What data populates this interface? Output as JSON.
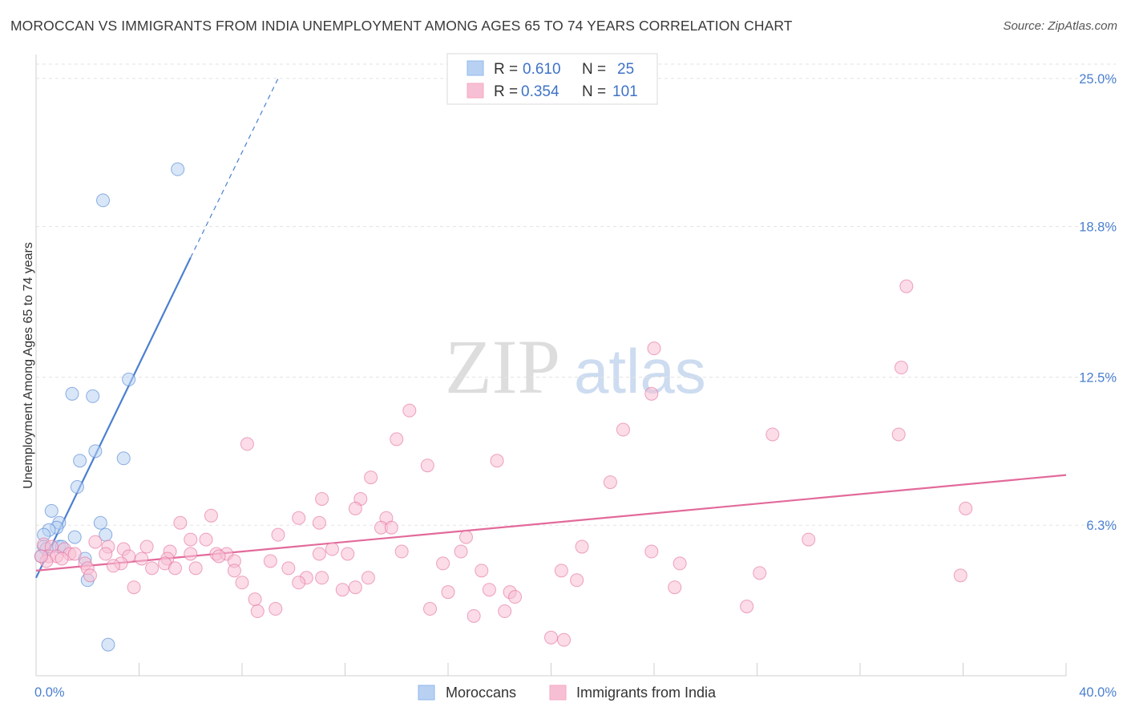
{
  "title": "MOROCCAN VS IMMIGRANTS FROM INDIA UNEMPLOYMENT AMONG AGES 65 TO 74 YEARS CORRELATION CHART",
  "source": "Source: ZipAtlas.com",
  "watermark": {
    "zip": "ZIP",
    "atlas": "atlas"
  },
  "legend": {
    "r_label": "R =",
    "n_label": "N =",
    "rows": [
      {
        "series": "Moroccans",
        "r": "0.610",
        "n": "25",
        "color": "#8fb8ee"
      },
      {
        "series": "Immigrants from India",
        "r": "0.354",
        "n": "101",
        "color": "#f5a9c4"
      }
    ]
  },
  "chart_data": {
    "type": "scatter",
    "title": "MOROCCAN VS IMMIGRANTS FROM INDIA UNEMPLOYMENT AMONG AGES 65 TO 74 YEARS CORRELATION CHART",
    "xlabel": "",
    "ylabel": "Unemployment Among Ages 65 to 74 years",
    "xlim": [
      0,
      40
    ],
    "ylim": [
      0,
      25.6
    ],
    "x_tick_labels": [
      "0.0%",
      "40.0%"
    ],
    "y_ticks": [
      {
        "value": 6.3,
        "label": "6.3%"
      },
      {
        "value": 12.5,
        "label": "12.5%"
      },
      {
        "value": 18.8,
        "label": "18.8%"
      },
      {
        "value": 25.0,
        "label": "25.0%"
      }
    ],
    "grid": true,
    "series": [
      {
        "name": "Moroccans",
        "color": "#4a7fd0",
        "fill": "#b8d1f3",
        "points": [
          [
            5.5,
            21.2
          ],
          [
            2.6,
            19.9
          ],
          [
            3.6,
            12.4
          ],
          [
            1.4,
            11.8
          ],
          [
            2.2,
            11.7
          ],
          [
            3.4,
            9.1
          ],
          [
            2.3,
            9.4
          ],
          [
            1.7,
            9.0
          ],
          [
            1.6,
            7.9
          ],
          [
            0.6,
            6.9
          ],
          [
            0.9,
            6.4
          ],
          [
            2.5,
            6.4
          ],
          [
            0.8,
            6.2
          ],
          [
            0.5,
            6.1
          ],
          [
            0.3,
            5.9
          ],
          [
            1.5,
            5.8
          ],
          [
            2.7,
            5.9
          ],
          [
            0.3,
            5.4
          ],
          [
            0.4,
            5.3
          ],
          [
            0.9,
            5.4
          ],
          [
            1.0,
            5.4
          ],
          [
            0.2,
            5.0
          ],
          [
            1.9,
            4.9
          ],
          [
            2.0,
            4.0
          ],
          [
            2.8,
            1.3
          ]
        ],
        "trend": {
          "x0": 0.0,
          "y0": 4.1,
          "x1": 6.0,
          "y1": 17.5,
          "dash_x1": 9.4,
          "dash_y1": 25.0
        }
      },
      {
        "name": "Immigrants from India",
        "color": "#e26a9b",
        "fill": "#f7bfd3",
        "points": [
          [
            33.8,
            16.3
          ],
          [
            24.0,
            13.7
          ],
          [
            33.6,
            12.9
          ],
          [
            23.9,
            11.8
          ],
          [
            14.5,
            11.1
          ],
          [
            22.8,
            10.3
          ],
          [
            28.6,
            10.1
          ],
          [
            33.5,
            10.1
          ],
          [
            14.0,
            9.9
          ],
          [
            8.2,
            9.7
          ],
          [
            15.2,
            8.8
          ],
          [
            17.9,
            9.0
          ],
          [
            13.0,
            8.3
          ],
          [
            22.3,
            8.1
          ],
          [
            11.1,
            7.4
          ],
          [
            12.6,
            7.4
          ],
          [
            12.4,
            7.0
          ],
          [
            36.1,
            7.0
          ],
          [
            6.8,
            6.7
          ],
          [
            10.2,
            6.6
          ],
          [
            13.6,
            6.6
          ],
          [
            11.0,
            6.4
          ],
          [
            5.6,
            6.4
          ],
          [
            13.4,
            6.2
          ],
          [
            13.8,
            6.2
          ],
          [
            9.4,
            5.9
          ],
          [
            16.7,
            5.8
          ],
          [
            6.0,
            5.7
          ],
          [
            6.6,
            5.7
          ],
          [
            30.0,
            5.7
          ],
          [
            2.3,
            5.6
          ],
          [
            4.3,
            5.4
          ],
          [
            21.2,
            5.4
          ],
          [
            0.3,
            5.5
          ],
          [
            0.6,
            5.4
          ],
          [
            11.5,
            5.3
          ],
          [
            2.8,
            5.4
          ],
          [
            3.4,
            5.3
          ],
          [
            5.2,
            5.2
          ],
          [
            6.0,
            5.1
          ],
          [
            7.0,
            5.1
          ],
          [
            7.4,
            5.1
          ],
          [
            11.0,
            5.1
          ],
          [
            12.1,
            5.1
          ],
          [
            14.2,
            5.2
          ],
          [
            16.5,
            5.2
          ],
          [
            23.9,
            5.2
          ],
          [
            1.1,
            5.3
          ],
          [
            1.3,
            5.1
          ],
          [
            0.5,
            5.0
          ],
          [
            0.8,
            5.0
          ],
          [
            1.5,
            5.1
          ],
          [
            2.7,
            5.1
          ],
          [
            3.6,
            5.0
          ],
          [
            4.1,
            4.9
          ],
          [
            5.1,
            4.9
          ],
          [
            7.1,
            5.0
          ],
          [
            1.0,
            4.9
          ],
          [
            0.4,
            4.8
          ],
          [
            0.2,
            5.0
          ],
          [
            1.9,
            4.7
          ],
          [
            3.3,
            4.7
          ],
          [
            5.0,
            4.7
          ],
          [
            7.7,
            4.8
          ],
          [
            9.1,
            4.8
          ],
          [
            15.8,
            4.7
          ],
          [
            25.0,
            4.7
          ],
          [
            2.0,
            4.5
          ],
          [
            3.0,
            4.6
          ],
          [
            4.5,
            4.5
          ],
          [
            5.4,
            4.5
          ],
          [
            6.2,
            4.5
          ],
          [
            7.7,
            4.4
          ],
          [
            9.8,
            4.5
          ],
          [
            17.3,
            4.4
          ],
          [
            20.4,
            4.4
          ],
          [
            28.1,
            4.3
          ],
          [
            35.9,
            4.2
          ],
          [
            2.1,
            4.2
          ],
          [
            10.5,
            4.1
          ],
          [
            11.1,
            4.1
          ],
          [
            12.9,
            4.1
          ],
          [
            21.0,
            4.0
          ],
          [
            10.2,
            3.9
          ],
          [
            12.4,
            3.7
          ],
          [
            24.8,
            3.7
          ],
          [
            3.8,
            3.7
          ],
          [
            8.0,
            3.9
          ],
          [
            11.9,
            3.6
          ],
          [
            17.6,
            3.6
          ],
          [
            18.4,
            3.5
          ],
          [
            16.0,
            3.5
          ],
          [
            18.6,
            3.3
          ],
          [
            8.5,
            3.2
          ],
          [
            27.6,
            2.9
          ],
          [
            15.3,
            2.8
          ],
          [
            9.3,
            2.8
          ],
          [
            8.6,
            2.7
          ],
          [
            17.0,
            2.5
          ],
          [
            18.2,
            2.7
          ],
          [
            20.0,
            1.6
          ],
          [
            20.5,
            1.5
          ]
        ],
        "trend": {
          "x0": 0.0,
          "y0": 4.4,
          "x1": 40.0,
          "y1": 8.4
        }
      }
    ]
  }
}
